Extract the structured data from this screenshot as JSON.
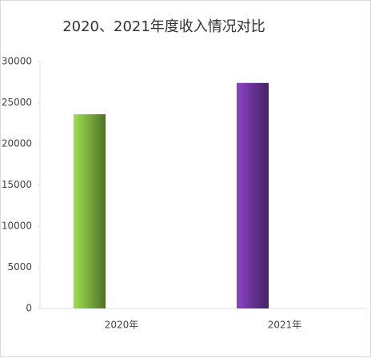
{
  "chart_data": {
    "type": "bar",
    "title": "2020、2021年度收入情况对比",
    "categories": [
      "2020年",
      "2021年"
    ],
    "values": [
      23600,
      27400
    ],
    "colors": [
      "#9ee050",
      "#8a44c4"
    ],
    "ylim": [
      0,
      30000
    ],
    "yticks": [
      0,
      5000,
      10000,
      15000,
      20000,
      25000,
      30000
    ],
    "grid": false
  }
}
